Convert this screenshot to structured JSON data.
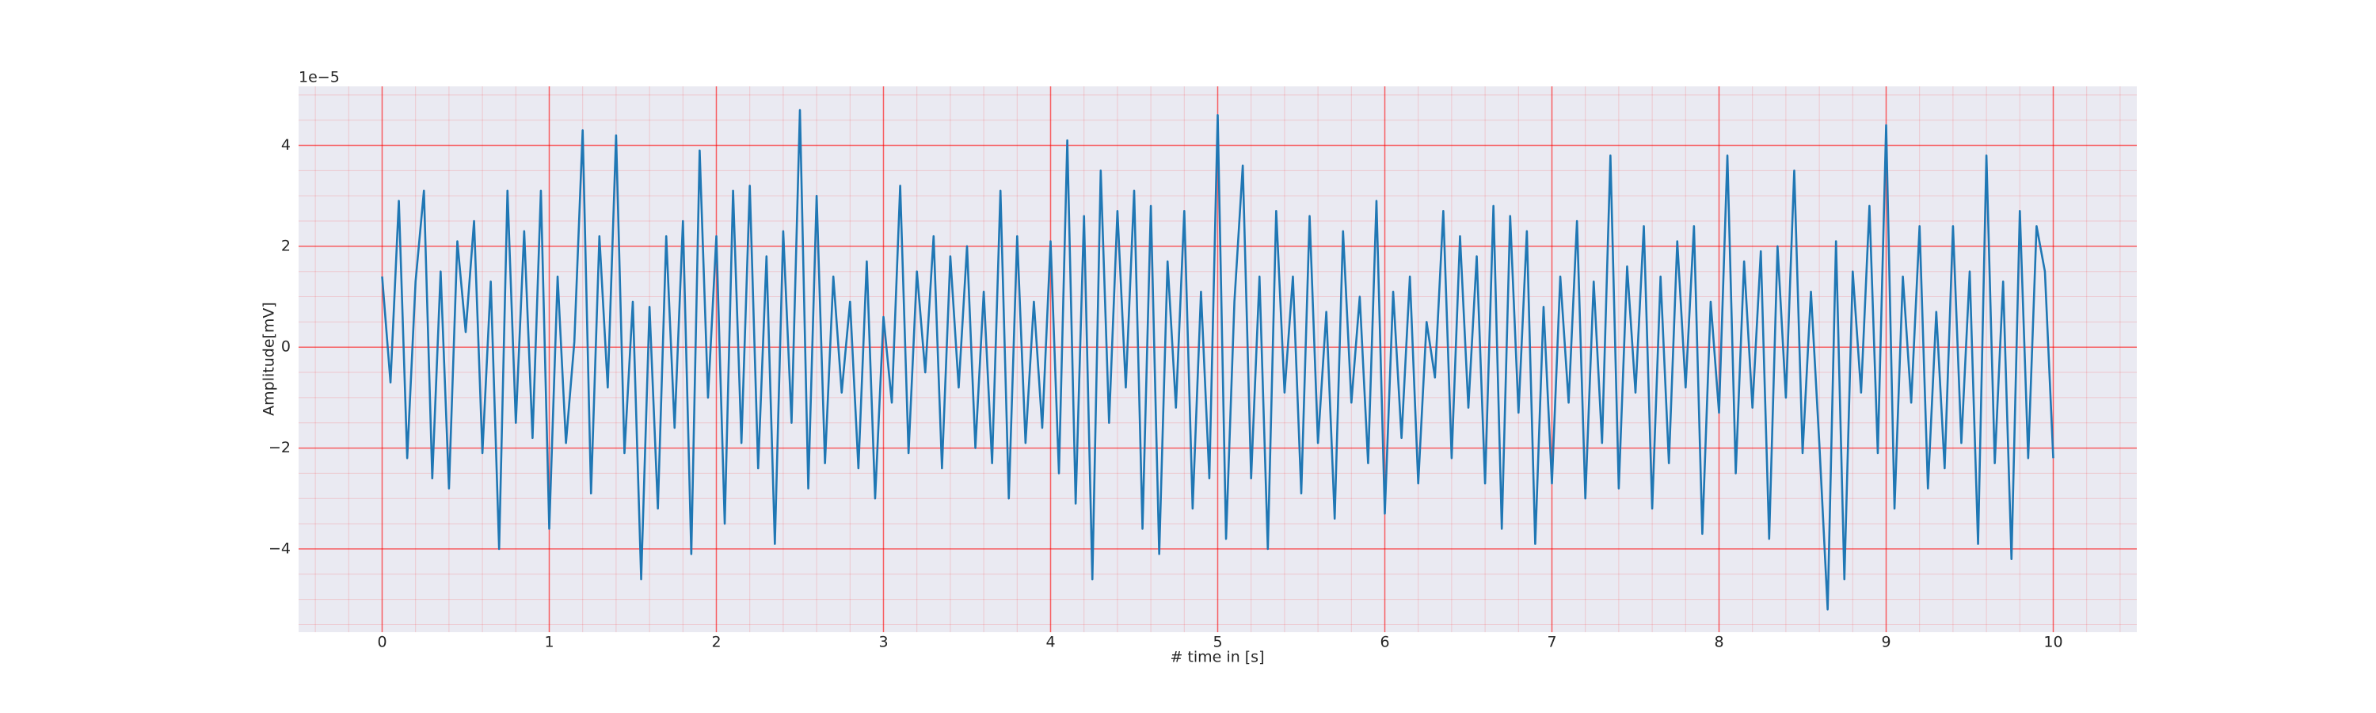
{
  "chart_data": {
    "type": "line",
    "xlabel": "# time in [s]",
    "ylabel": "Amplitude[mV]",
    "y_offset_label": "1e−5",
    "xlim": [
      -0.5,
      10.5
    ],
    "ylim": [
      -5.65,
      5.17
    ],
    "xticks": [
      0,
      1,
      2,
      3,
      4,
      5,
      6,
      7,
      8,
      9,
      10
    ],
    "yticks": [
      {
        "value": -4,
        "label": "−4"
      },
      {
        "value": -2,
        "label": "−2"
      },
      0,
      2,
      4
    ],
    "xminorticks": [
      -0.4,
      -0.2,
      0.2,
      0.4,
      0.6,
      0.8,
      1.2,
      1.4,
      1.6,
      1.8,
      2.2,
      2.4,
      2.6,
      2.8,
      3.2,
      3.4,
      3.6,
      3.8,
      4.2,
      4.4,
      4.6,
      4.8,
      5.2,
      5.4,
      5.6,
      5.8,
      6.2,
      6.4,
      6.6,
      6.8,
      7.2,
      7.4,
      7.6,
      7.8,
      8.2,
      8.4,
      8.6,
      8.8,
      9.2,
      9.4,
      9.6,
      9.8,
      10.2,
      10.4
    ],
    "yminorticks": [
      -5.5,
      -5,
      -4.5,
      -3.5,
      -3,
      -2.5,
      -1.5,
      -1,
      -0.5,
      0.5,
      1,
      1.5,
      2.5,
      3,
      3.5,
      4.5,
      5
    ],
    "grid": true,
    "grid_color": "#ff0000",
    "background": "#eaeaf2",
    "series": [
      {
        "color": "#1f77b4",
        "x": [
          0,
          0.05,
          0.1,
          0.15,
          0.2,
          0.25,
          0.3,
          0.35,
          0.4,
          0.45,
          0.5,
          0.55,
          0.6,
          0.65,
          0.7,
          0.75,
          0.8,
          0.85,
          0.9,
          0.95,
          1,
          1.05,
          1.1,
          1.15,
          1.2,
          1.25,
          1.3,
          1.35,
          1.4,
          1.45,
          1.5,
          1.55,
          1.6,
          1.65,
          1.7,
          1.75,
          1.8,
          1.85,
          1.9,
          1.95,
          2,
          2.05,
          2.1,
          2.15,
          2.2,
          2.25,
          2.3,
          2.35,
          2.4,
          2.45,
          2.5,
          2.55,
          2.6,
          2.65,
          2.7,
          2.75,
          2.8,
          2.85,
          2.9,
          2.95,
          3,
          3.05,
          3.1,
          3.15,
          3.2,
          3.25,
          3.3,
          3.35,
          3.4,
          3.45,
          3.5,
          3.55,
          3.6,
          3.65,
          3.7,
          3.75,
          3.8,
          3.85,
          3.9,
          3.95,
          4,
          4.05,
          4.1,
          4.15,
          4.2,
          4.25,
          4.3,
          4.35,
          4.4,
          4.45,
          4.5,
          4.55,
          4.6,
          4.65,
          4.7,
          4.75,
          4.8,
          4.85,
          4.9,
          4.95,
          5,
          5.05,
          5.1,
          5.15,
          5.2,
          5.25,
          5.3,
          5.35,
          5.4,
          5.45,
          5.5,
          5.55,
          5.6,
          5.65,
          5.7,
          5.75,
          5.8,
          5.85,
          5.9,
          5.95,
          6,
          6.05,
          6.1,
          6.15,
          6.2,
          6.25,
          6.3,
          6.35,
          6.4,
          6.45,
          6.5,
          6.55,
          6.6,
          6.65,
          6.7,
          6.75,
          6.8,
          6.85,
          6.9,
          6.95,
          7,
          7.05,
          7.1,
          7.15,
          7.2,
          7.25,
          7.3,
          7.35,
          7.4,
          7.45,
          7.5,
          7.55,
          7.6,
          7.65,
          7.7,
          7.75,
          7.8,
          7.85,
          7.9,
          7.95,
          8,
          8.05,
          8.1,
          8.15,
          8.2,
          8.25,
          8.3,
          8.35,
          8.4,
          8.45,
          8.5,
          8.55,
          8.6,
          8.65,
          8.7,
          8.75,
          8.8,
          8.85,
          8.9,
          8.95,
          9,
          9.05,
          9.1,
          9.15,
          9.2,
          9.25,
          9.3,
          9.35,
          9.4,
          9.45,
          9.5,
          9.55,
          9.6,
          9.65,
          9.7,
          9.75,
          9.8,
          9.85,
          9.9,
          9.95,
          10
        ],
        "values": [
          1.4,
          -0.7,
          2.9,
          -2.2,
          1.3,
          3.1,
          -2.6,
          1.5,
          -2.8,
          2.1,
          0.3,
          2.5,
          -2.1,
          1.3,
          -4.0,
          3.1,
          -1.5,
          2.3,
          -1.8,
          3.1,
          -3.6,
          1.4,
          -1.9,
          0.1,
          4.3,
          -2.9,
          2.2,
          -0.8,
          4.2,
          -2.1,
          0.9,
          -4.6,
          0.8,
          -3.2,
          2.2,
          -1.6,
          2.5,
          -4.1,
          3.9,
          -1.0,
          2.2,
          -3.5,
          3.1,
          -1.9,
          3.2,
          -2.4,
          1.8,
          -3.9,
          2.3,
          -1.5,
          4.7,
          -2.8,
          3.0,
          -2.3,
          1.4,
          -0.9,
          0.9,
          -2.4,
          1.7,
          -3.0,
          0.6,
          -1.1,
          3.2,
          -2.1,
          1.5,
          -0.5,
          2.2,
          -2.4,
          1.8,
          -0.8,
          2.0,
          -2.0,
          1.1,
          -2.3,
          3.1,
          -3.0,
          2.2,
          -1.9,
          0.9,
          -1.6,
          2.1,
          -2.5,
          4.1,
          -3.1,
          2.6,
          -4.6,
          3.5,
          -1.5,
          2.7,
          -0.8,
          3.1,
          -3.6,
          2.8,
          -4.1,
          1.7,
          -1.2,
          2.7,
          -3.2,
          1.1,
          -2.6,
          4.6,
          -3.8,
          0.9,
          3.6,
          -2.6,
          1.4,
          -4.0,
          2.7,
          -0.9,
          1.4,
          -2.9,
          2.6,
          -1.9,
          0.7,
          -3.4,
          2.3,
          -1.1,
          1.0,
          -2.3,
          2.9,
          -3.3,
          1.1,
          -1.8,
          1.4,
          -2.7,
          0.5,
          -0.6,
          2.7,
          -2.2,
          2.2,
          -1.2,
          1.8,
          -2.7,
          2.8,
          -3.6,
          2.6,
          -1.3,
          2.3,
          -3.9,
          0.8,
          -2.7,
          1.4,
          -1.1,
          2.5,
          -3.0,
          1.3,
          -1.9,
          3.8,
          -2.8,
          1.6,
          -0.9,
          2.4,
          -3.2,
          1.4,
          -2.3,
          2.1,
          -0.8,
          2.4,
          -3.7,
          0.9,
          -1.3,
          3.8,
          -2.5,
          1.7,
          -1.2,
          1.9,
          -3.8,
          2.0,
          -1.0,
          3.5,
          -2.1,
          1.1,
          -1.9,
          -5.2,
          2.1,
          -4.6,
          1.5,
          -0.9,
          2.8,
          -2.1,
          4.4,
          -3.2,
          1.4,
          -1.1,
          2.4,
          -2.8,
          0.7,
          -2.4,
          2.4,
          -1.9,
          1.5,
          -3.9,
          3.8,
          -2.3,
          1.3,
          -4.2,
          2.7,
          -2.2,
          2.4,
          1.5,
          -2.2
        ]
      }
    ]
  }
}
